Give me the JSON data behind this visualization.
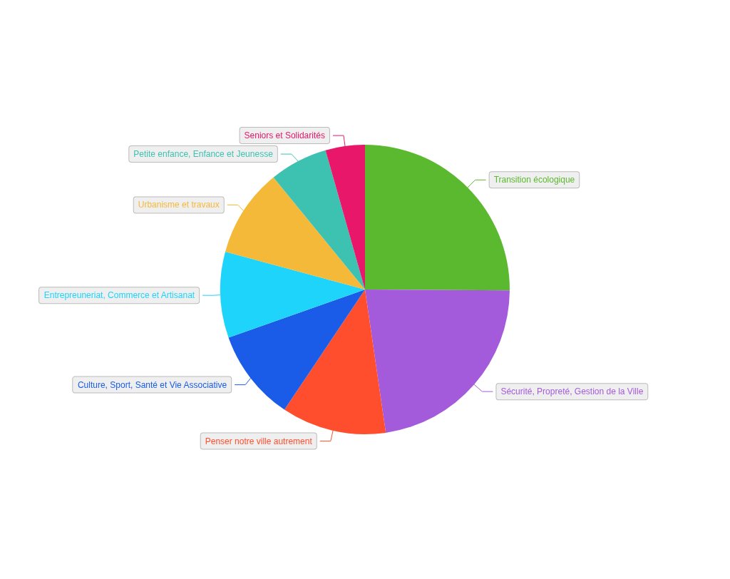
{
  "chart_data": {
    "type": "pie",
    "categories": [
      "Transition écologique",
      "Sécurité, Propreté, Gestion de la Ville",
      "Penser notre ville autrement",
      "Culture, Sport, Santé et Vie Associative",
      "Entrepreuneriat, Commerce et Artisanat",
      "Urbanisme et travaux",
      "Petite enfance, Enfance et Jeunesse",
      "Seniors et Solidarités"
    ],
    "values": [
      25.1,
      22.6,
      11.7,
      10.2,
      9.6,
      9.9,
      6.5,
      4.4
    ],
    "colors": [
      "#5bb92f",
      "#a35bdc",
      "#ff4e2e",
      "#1a5ce8",
      "#1ed4fb",
      "#f5b93a",
      "#3dc1b0",
      "#e8176a"
    ],
    "legend": false
  }
}
